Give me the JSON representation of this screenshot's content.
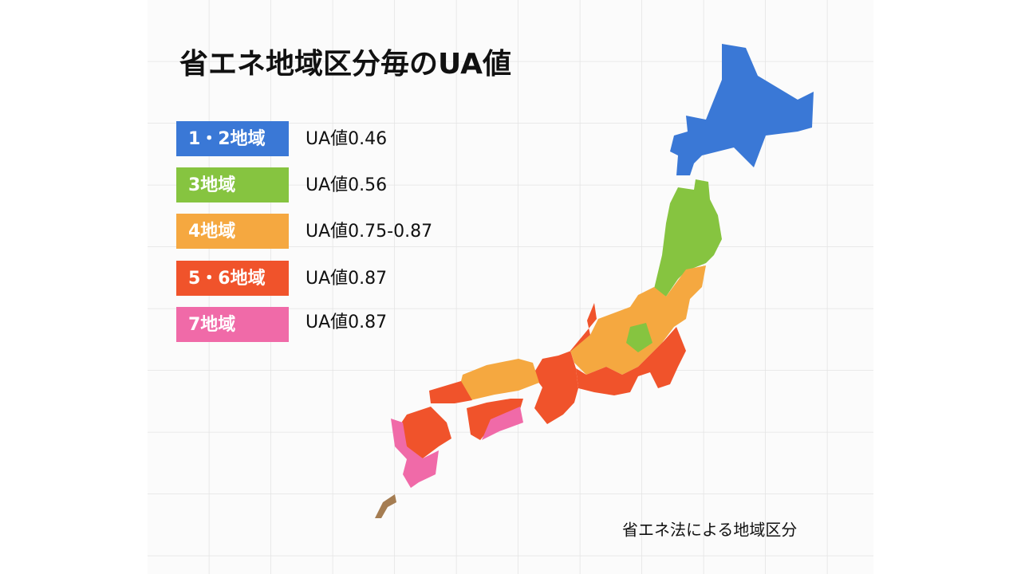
{
  "title": "省エネ地域区分毎のUA値",
  "legend": [
    {
      "label": "1・2地域",
      "value": "UA値0.46"
    },
    {
      "label": "3地域",
      "value": "UA値0.56"
    },
    {
      "label": "4地域",
      "value": "UA値0.75-0.87"
    },
    {
      "label": "5・6地域",
      "value": "UA値0.87"
    },
    {
      "label": "7地域",
      "value": "UA値0.87"
    }
  ],
  "caption": "省エネ法による地域区分"
}
